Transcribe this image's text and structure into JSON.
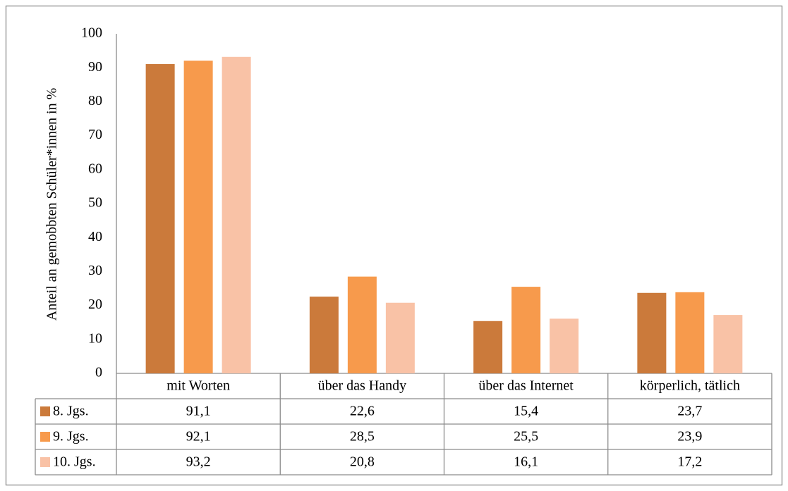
{
  "chart_data": {
    "type": "bar",
    "y_label": "Anteil an gemobbten Schüler*innen in %",
    "categories": [
      "mit Worten",
      "über das Handy",
      "über das Internet",
      "körperlich, tätlich"
    ],
    "series": [
      {
        "name": "8. Jgs.",
        "color": "#cb7a3b",
        "values": [
          91.1,
          22.6,
          15.4,
          23.7
        ],
        "value_labels": [
          "91,1",
          "22,6",
          "15,4",
          "23,7"
        ]
      },
      {
        "name": "9. Jgs.",
        "color": "#f79a4c",
        "values": [
          92.1,
          28.5,
          25.5,
          23.9
        ],
        "value_labels": [
          "92,1",
          "28,5",
          "25,5",
          "23,9"
        ]
      },
      {
        "name": "10. Jgs.",
        "color": "#f9c2a6",
        "values": [
          93.2,
          20.8,
          16.1,
          17.2
        ],
        "value_labels": [
          "93,2",
          "20,8",
          "16,1",
          "17,2"
        ]
      }
    ],
    "ylim": [
      0,
      100
    ],
    "yticks": [
      0,
      10,
      20,
      30,
      40,
      50,
      60,
      70,
      80,
      90,
      100
    ],
    "grid": false
  }
}
